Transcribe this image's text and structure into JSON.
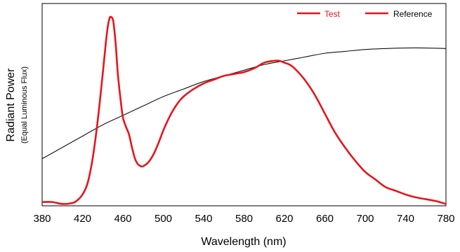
{
  "chart_data": {
    "type": "line",
    "title": "",
    "xlabel": "Wavelength (nm)",
    "ylabel": "Radiant Power",
    "ylabel_sub": "(Equal Luminous Flux)",
    "xlim": [
      380,
      780
    ],
    "ylim": [
      0,
      1
    ],
    "x_ticks": [
      380,
      420,
      460,
      500,
      540,
      580,
      620,
      660,
      700,
      740,
      780
    ],
    "grid": false,
    "legend_position": "top-right",
    "series": [
      {
        "name": "Test",
        "color": "#e8141c",
        "x": [
          380,
          390,
          400,
          410,
          415,
          420,
          425,
          430,
          435,
          440,
          443,
          445,
          447,
          449,
          450,
          451,
          453,
          455,
          458,
          460,
          463,
          466,
          469,
          472,
          475,
          478,
          480,
          485,
          490,
          495,
          500,
          505,
          510,
          515,
          520,
          530,
          540,
          550,
          560,
          570,
          580,
          590,
          600,
          610,
          615,
          620,
          625,
          630,
          640,
          650,
          660,
          670,
          680,
          690,
          700,
          710,
          720,
          730,
          740,
          750,
          760,
          770,
          780
        ],
        "y": [
          0.02,
          0.02,
          0.01,
          0.015,
          0.03,
          0.06,
          0.12,
          0.25,
          0.45,
          0.7,
          0.86,
          0.95,
          1.0,
          1.0,
          0.99,
          0.96,
          0.85,
          0.7,
          0.55,
          0.47,
          0.42,
          0.38,
          0.31,
          0.25,
          0.22,
          0.21,
          0.21,
          0.23,
          0.27,
          0.33,
          0.4,
          0.46,
          0.51,
          0.55,
          0.58,
          0.62,
          0.65,
          0.67,
          0.69,
          0.7,
          0.71,
          0.73,
          0.76,
          0.77,
          0.77,
          0.76,
          0.75,
          0.73,
          0.67,
          0.59,
          0.49,
          0.39,
          0.31,
          0.24,
          0.18,
          0.14,
          0.1,
          0.08,
          0.06,
          0.045,
          0.035,
          0.025,
          0.01
        ]
      },
      {
        "name": "Reference",
        "color": "#e8141c",
        "x": [
          380,
          400,
          420,
          440,
          460,
          480,
          500,
          520,
          540,
          560,
          580,
          600,
          620,
          640,
          660,
          680,
          700,
          720,
          740,
          760,
          780
        ],
        "y": [
          0.25,
          0.31,
          0.37,
          0.43,
          0.48,
          0.53,
          0.58,
          0.62,
          0.66,
          0.69,
          0.72,
          0.75,
          0.77,
          0.79,
          0.81,
          0.82,
          0.83,
          0.835,
          0.838,
          0.838,
          0.835
        ]
      }
    ],
    "reference_line_color": "#111111"
  }
}
